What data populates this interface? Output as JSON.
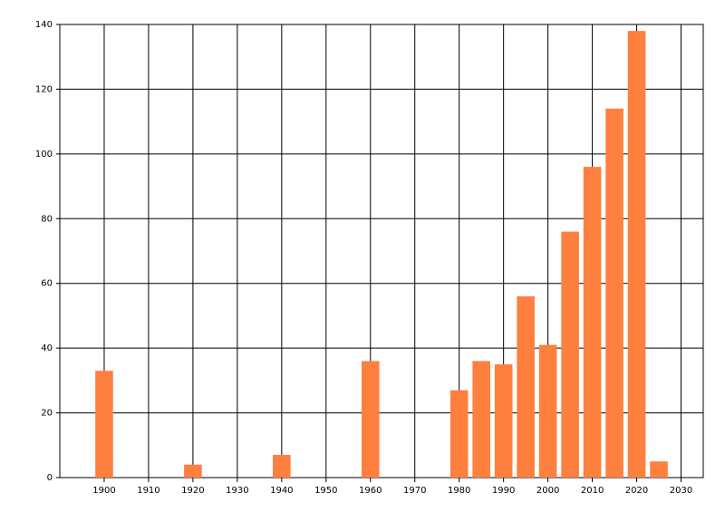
{
  "chart_data": {
    "type": "bar",
    "x": [
      1900,
      1920,
      1940,
      1960,
      1980,
      1985,
      1990,
      1995,
      2000,
      2005,
      2010,
      2015,
      2020,
      2025
    ],
    "values": [
      33,
      4,
      7,
      36,
      27,
      36,
      35,
      56,
      41,
      76,
      96,
      114,
      138,
      5
    ],
    "color": "#ff7f3f",
    "xlim": [
      1890,
      2035
    ],
    "xticks": [
      1900,
      1910,
      1920,
      1930,
      1940,
      1950,
      1960,
      1970,
      1980,
      1990,
      2000,
      2010,
      2020,
      2030
    ],
    "ylim": [
      0,
      140
    ],
    "yticks": [
      0,
      20,
      40,
      60,
      80,
      100,
      120,
      140
    ],
    "grid": true
  }
}
